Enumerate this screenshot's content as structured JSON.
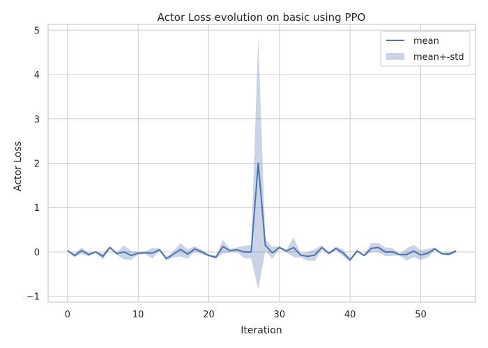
{
  "chart_data": {
    "type": "line",
    "title": "Actor Loss evolution on basic using PPO",
    "xlabel": "Iteration",
    "ylabel": "Actor Loss",
    "xlim": [
      -2.75,
      57.75
    ],
    "ylim": [
      -1.13,
      5.13
    ],
    "xticks": [
      0,
      10,
      20,
      30,
      40,
      50
    ],
    "yticks": [
      -1,
      0,
      1,
      2,
      3,
      4,
      5
    ],
    "grid": true,
    "legend_position": "top-right",
    "colors": {
      "line": "#4c72b0",
      "band": "#4c72b0"
    },
    "series": [
      {
        "name": "mean",
        "x": [
          0,
          1,
          2,
          3,
          4,
          5,
          6,
          7,
          8,
          9,
          10,
          11,
          12,
          13,
          14,
          15,
          16,
          17,
          18,
          19,
          20,
          21,
          22,
          23,
          24,
          25,
          26,
          27,
          28,
          29,
          30,
          31,
          32,
          33,
          34,
          35,
          36,
          37,
          38,
          39,
          40,
          41,
          42,
          43,
          44,
          45,
          46,
          47,
          48,
          49,
          50,
          51,
          52,
          53,
          54,
          55
        ],
        "y": [
          0.03,
          -0.08,
          0.03,
          -0.06,
          0.0,
          -0.1,
          0.1,
          -0.04,
          0.0,
          -0.08,
          -0.03,
          -0.02,
          -0.03,
          0.05,
          -0.15,
          -0.05,
          0.06,
          -0.05,
          0.07,
          0.0,
          -0.08,
          -0.12,
          0.12,
          0.03,
          0.05,
          0.0,
          0.0,
          2.0,
          0.15,
          -0.02,
          0.1,
          0.02,
          0.1,
          -0.07,
          -0.1,
          -0.07,
          0.1,
          -0.03,
          0.08,
          -0.02,
          -0.18,
          0.02,
          -0.08,
          0.08,
          0.1,
          0.0,
          0.0,
          -0.06,
          -0.06,
          0.02,
          -0.07,
          -0.03,
          0.07,
          -0.04,
          -0.05,
          0.02
        ]
      },
      {
        "name": "mean+-std",
        "x": [
          0,
          1,
          2,
          3,
          4,
          5,
          6,
          7,
          8,
          9,
          10,
          11,
          12,
          13,
          14,
          15,
          16,
          17,
          18,
          19,
          20,
          21,
          22,
          23,
          24,
          25,
          26,
          27,
          28,
          29,
          30,
          31,
          32,
          33,
          34,
          35,
          36,
          37,
          38,
          39,
          40,
          41,
          42,
          43,
          44,
          45,
          46,
          47,
          48,
          49,
          50,
          51,
          52,
          53,
          54,
          55
        ],
        "lower": [
          0.01,
          -0.12,
          -0.04,
          -0.1,
          -0.02,
          -0.17,
          0.07,
          -0.07,
          -0.17,
          -0.18,
          -0.06,
          -0.05,
          -0.15,
          0.02,
          -0.19,
          -0.12,
          -0.1,
          -0.16,
          0.01,
          -0.05,
          -0.1,
          -0.16,
          -0.03,
          -0.01,
          0.0,
          -0.14,
          -0.15,
          -0.85,
          0.02,
          -0.16,
          0.07,
          -0.01,
          -0.12,
          -0.12,
          -0.2,
          -0.2,
          0.05,
          -0.06,
          0.04,
          -0.1,
          -0.22,
          -0.01,
          -0.1,
          -0.01,
          0.0,
          -0.1,
          -0.09,
          -0.08,
          -0.2,
          -0.12,
          -0.18,
          -0.13,
          0.04,
          -0.06,
          -0.09,
          -0.01
        ],
        "upper": [
          0.05,
          -0.04,
          0.1,
          -0.02,
          0.02,
          -0.03,
          0.13,
          -0.01,
          0.15,
          0.02,
          0.0,
          0.01,
          0.09,
          0.08,
          -0.11,
          0.02,
          0.2,
          0.06,
          0.13,
          0.05,
          -0.06,
          -0.08,
          0.27,
          0.07,
          0.1,
          0.14,
          0.15,
          4.83,
          0.28,
          0.12,
          0.13,
          0.05,
          0.33,
          -0.02,
          0.0,
          0.06,
          0.15,
          0.0,
          0.12,
          0.06,
          -0.14,
          0.05,
          -0.06,
          0.2,
          0.2,
          0.1,
          0.09,
          -0.04,
          0.08,
          0.16,
          0.04,
          0.07,
          0.1,
          -0.02,
          -0.01,
          0.05
        ]
      }
    ]
  }
}
